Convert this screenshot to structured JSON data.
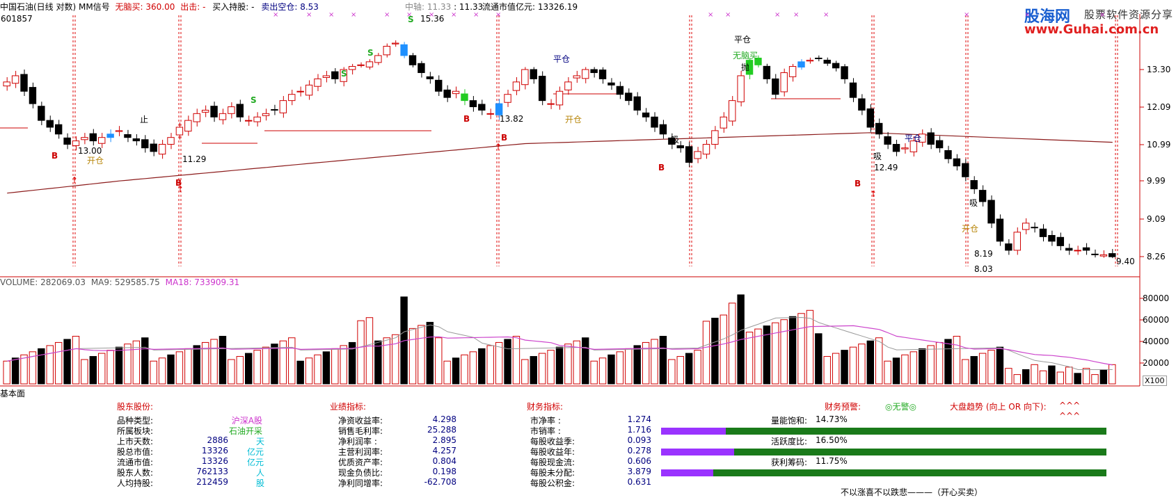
{
  "header": {
    "title": "中国石油(日线 对数) MM信号",
    "stock_code": "601857",
    "signals": [
      {
        "label": "无脑买:",
        "value": "360.00",
        "color": "#d00000"
      },
      {
        "label": "出击:",
        "value": "-",
        "color": "#d00000"
      },
      {
        "label": "买入持股:",
        "value": "-",
        "color": "#000000"
      },
      {
        "label": "卖出空仓:",
        "value": "8.53",
        "color": "#000080"
      }
    ],
    "center_label": "中轴:",
    "center_value_1": "11.33",
    "center_value_2": "11.33",
    "market_cap_label": "流通市值亿元:",
    "market_cap_value": "13326.19"
  },
  "logo": {
    "brand": "股海网",
    "slogan": "股票软件资源分享",
    "url": "www.Guhai.com.cn"
  },
  "price_axis": [
    "13.30",
    "12.09",
    "10.99",
    "9.99",
    "9.09",
    "8.26"
  ],
  "volume_axis": [
    "80000",
    "60000",
    "40000",
    "20000"
  ],
  "volume_unit": "X100",
  "volume_header": {
    "volume": "VOLUME: 282069.03",
    "ma9": "MA9: 529585.75",
    "ma18": "MA18: 733909.31"
  },
  "chart_annotations": [
    {
      "text": "15.36"
    },
    {
      "text": "13.00"
    },
    {
      "text": "11.29"
    },
    {
      "text": "13.82"
    },
    {
      "text": "12.49"
    },
    {
      "text": "8.19"
    },
    {
      "text": "8.03"
    },
    {
      "text": "9.40"
    },
    {
      "text": "平仓"
    },
    {
      "text": "开仓"
    },
    {
      "text": "无脑买"
    },
    {
      "text": "吸"
    },
    {
      "text": "止"
    },
    {
      "text": "抛"
    }
  ],
  "fundamentals": {
    "section_label": "基本面",
    "shareholder": {
      "title": "股东股份:",
      "rows": [
        {
          "label": "品种类型:",
          "value": "沪深A股",
          "unit": ""
        },
        {
          "label": "所属板块:",
          "value": "石油开采",
          "unit": ""
        },
        {
          "label": "上市天数:",
          "value": "2886",
          "unit": "天"
        },
        {
          "label": "股总市值:",
          "value": "13326",
          "unit": "亿元"
        },
        {
          "label": "流通市值:",
          "value": "13326",
          "unit": "亿元"
        },
        {
          "label": "股东人数:",
          "value": "762133",
          "unit": "人"
        },
        {
          "label": "人均持股:",
          "value": "212459",
          "unit": "股"
        }
      ]
    },
    "performance": {
      "title": "业绩指标:",
      "rows": [
        {
          "label": "净资收益率:",
          "value": "4.298"
        },
        {
          "label": "销售毛利率:",
          "value": "25.288"
        },
        {
          "label": "净利润率  :",
          "value": "2.895"
        },
        {
          "label": "主营利润率:",
          "value": "4.257"
        },
        {
          "label": "优质资产率:",
          "value": "0.804"
        },
        {
          "label": "现金负债比:",
          "value": "0.198"
        },
        {
          "label": "净利同增率:",
          "value": "-62.708"
        }
      ]
    },
    "financial": {
      "title": "财务指标:",
      "rows": [
        {
          "label": "市净率     :",
          "value": "1.274"
        },
        {
          "label": "市销率     :",
          "value": "1.716"
        },
        {
          "label": "每股收益季:",
          "value": "0.093"
        },
        {
          "label": "每股收益年:",
          "value": "0.278"
        },
        {
          "label": "每股现金流:",
          "value": "0.606"
        },
        {
          "label": "每股未分配:",
          "value": "3.879"
        },
        {
          "label": "每股公积金:",
          "value": "0.631"
        }
      ]
    },
    "warning": {
      "label": "财务预警:",
      "value": "◎无警◎",
      "trend_label": "大盘趋势 (向上 OR 向下):",
      "trend_value_1": "^^^",
      "trend_value_2": "^^^"
    },
    "meters": [
      {
        "label": "量能饱和:",
        "value": "14.73%",
        "fraction": 0.1473
      },
      {
        "label": "活跃度比:",
        "value": "16.50%",
        "fraction": 0.165
      },
      {
        "label": "获利筹码:",
        "value": "11.75%",
        "fraction": 0.1175
      }
    ],
    "footer_text": "不以涨喜不以跌悲———（开心买卖）"
  },
  "colors": {
    "up": "#d00000",
    "down": "#000000",
    "signal_blue": "#1e90ff",
    "signal_green": "#22cc22",
    "ma_line": "#8b1a1a",
    "ma9_line": "#999999",
    "ma18_line": "#cc44cc",
    "meter_fill": "#9a33ff",
    "meter_track": "#1a7a1a"
  }
}
